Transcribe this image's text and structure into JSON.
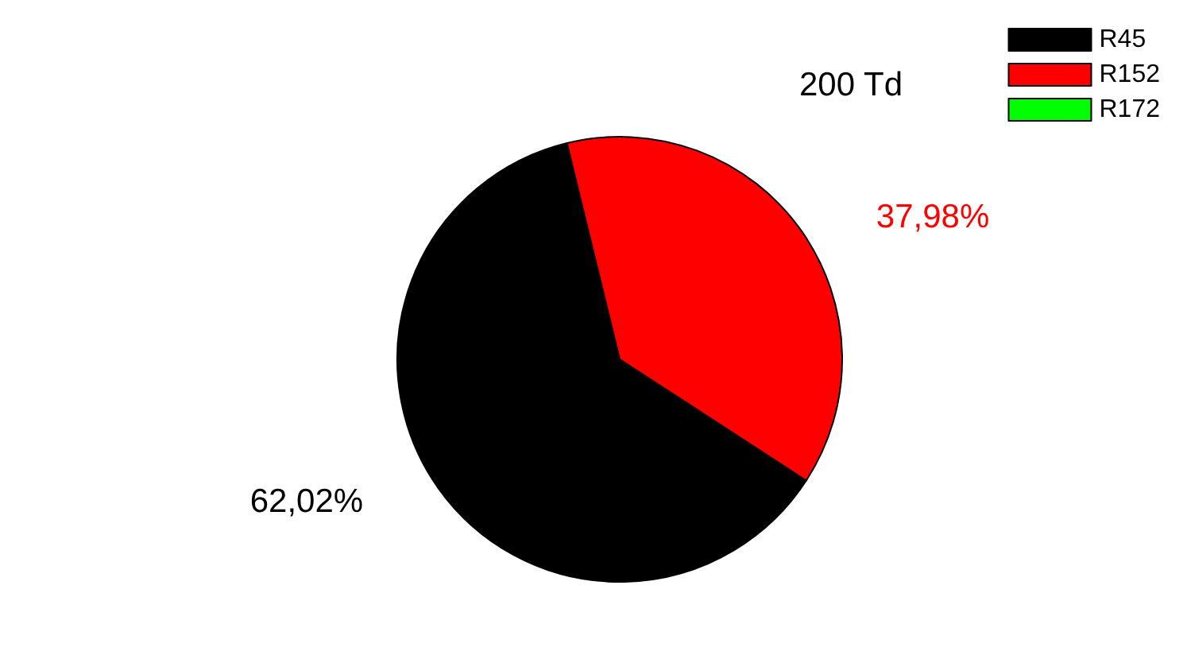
{
  "chart_data": {
    "type": "pie",
    "title": "200 Td",
    "categories": [
      "R45",
      "R152",
      "R172"
    ],
    "values": [
      62.02,
      37.98,
      0
    ],
    "colors": [
      "#000000",
      "#ff0000",
      "#00ff00"
    ],
    "value_labels": [
      "62,02%",
      "37,98%",
      null
    ],
    "legend": "top right"
  }
}
